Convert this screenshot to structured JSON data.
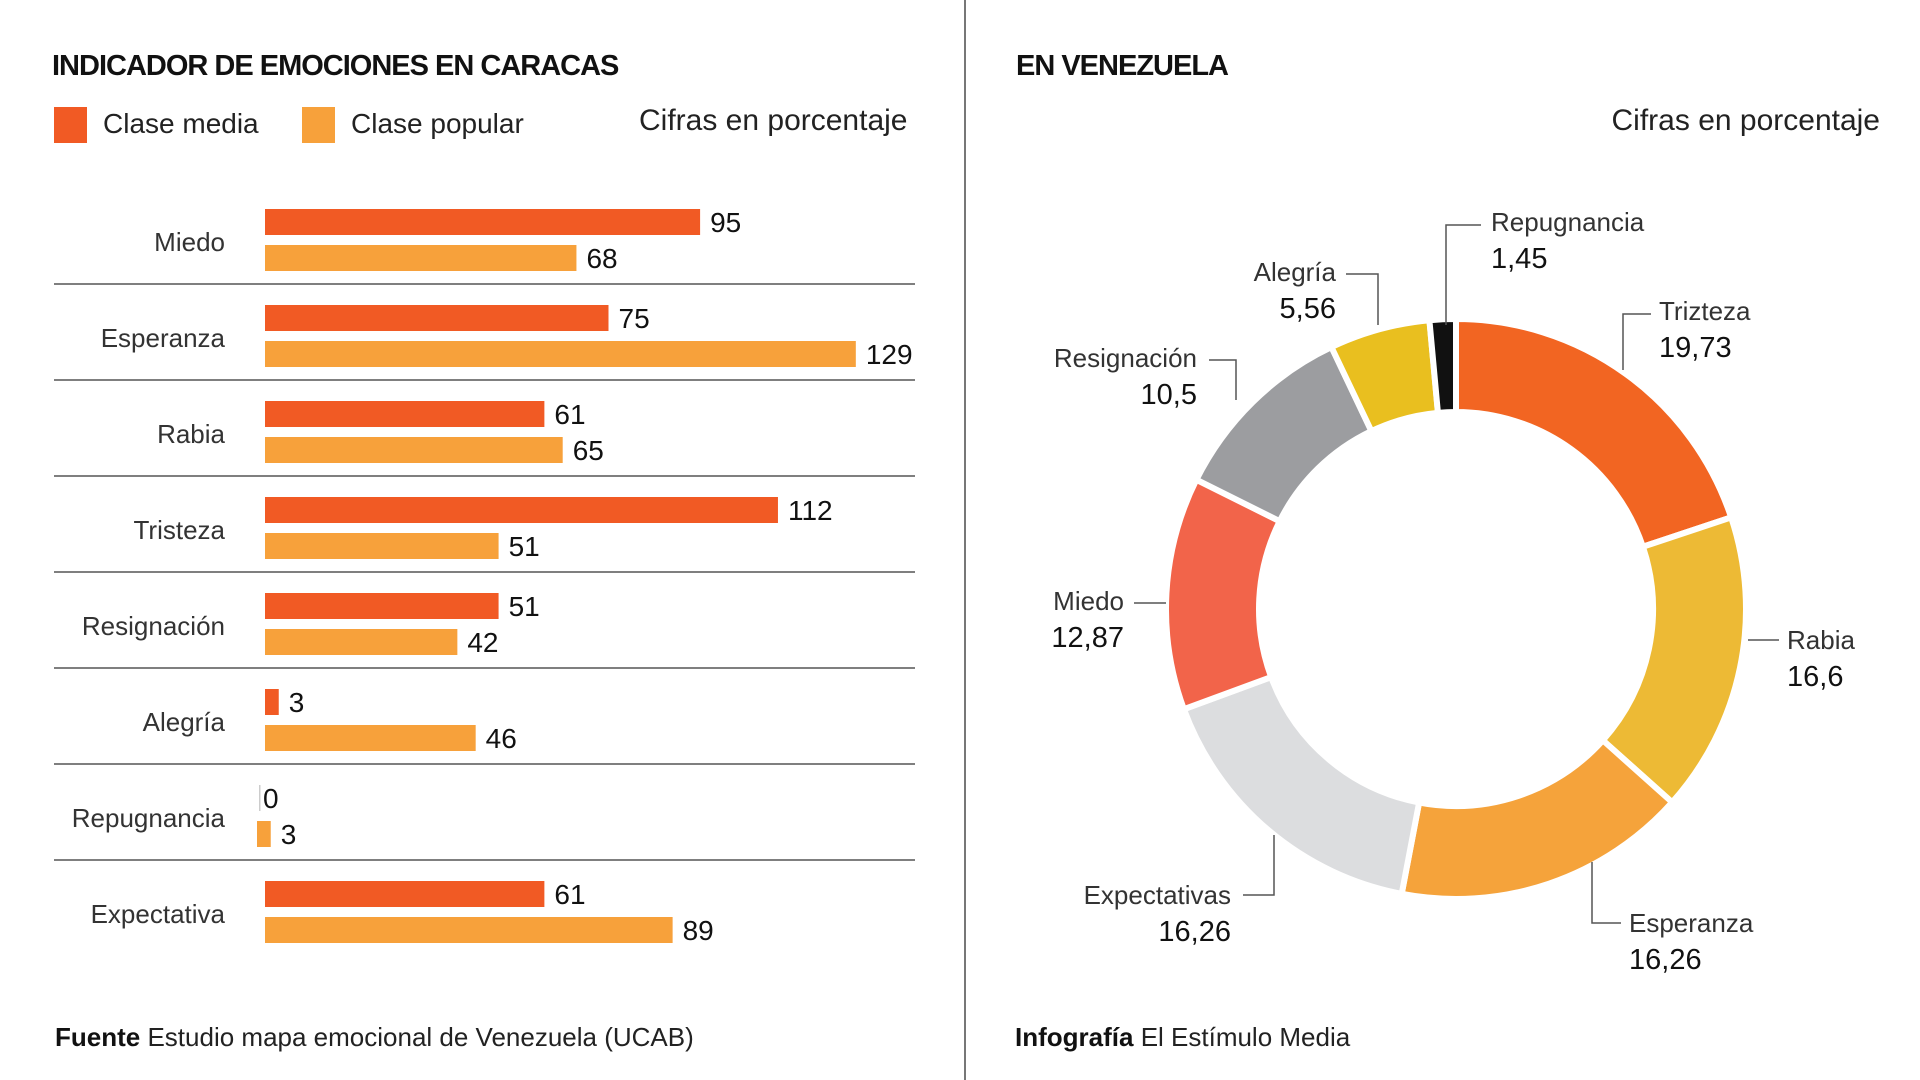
{
  "left": {
    "title": "INDICADOR DE EMOCIONES EN CARACAS",
    "legend": [
      {
        "label": "Clase media",
        "color": "#F15A24"
      },
      {
        "label": "Clase popular",
        "color": "#F7A13B"
      }
    ],
    "note": "Cifras en porcentaje",
    "footer_bold": "Fuente",
    "footer_text": "Estudio mapa emocional de Venezuela (UCAB)"
  },
  "right": {
    "title": "EN VENEZUELA",
    "note": "Cifras en porcentaje",
    "footer_bold": "Infografía",
    "footer_text": "El Estímulo Media"
  },
  "chart_data": [
    {
      "type": "bar",
      "orientation": "horizontal",
      "title": "INDICADOR DE EMOCIONES EN CARACAS",
      "categories": [
        "Miedo",
        "Esperanza",
        "Rabia",
        "Tristeza",
        "Resignación",
        "Alegría",
        "Repugnancia",
        "Expectativa"
      ],
      "series": [
        {
          "name": "Clase media",
          "color": "#F15A24",
          "values": [
            95,
            75,
            61,
            112,
            51,
            3,
            0,
            61
          ]
        },
        {
          "name": "Clase popular",
          "color": "#F7A13B",
          "values": [
            68,
            129,
            65,
            51,
            42,
            46,
            3,
            89
          ]
        }
      ],
      "data_labels": true,
      "grid": false,
      "legend_placement": "top-left"
    },
    {
      "type": "pie",
      "variant": "donut",
      "title": "EN VENEZUELA",
      "slices": [
        {
          "label": "Trizteza",
          "value": 19.73,
          "display": "19,73",
          "color": "#F26522"
        },
        {
          "label": "Rabia",
          "value": 16.6,
          "display": "16,6",
          "color": "#EDBA35"
        },
        {
          "label": "Esperanza",
          "value": 16.26,
          "display": "16,26",
          "color": "#F5A33B"
        },
        {
          "label": "Expectativas",
          "value": 16.26,
          "display": "16,26",
          "color": "#DCDDDF"
        },
        {
          "label": "Miedo",
          "value": 12.87,
          "display": "12,87",
          "color": "#F2644A"
        },
        {
          "label": "Resignación",
          "value": 10.5,
          "display": "10,5",
          "color": "#9C9DA0"
        },
        {
          "label": "Alegría",
          "value": 5.56,
          "display": "5,56",
          "color": "#E9BF1F"
        },
        {
          "label": "Repugnancia",
          "value": 1.45,
          "display": "1,45",
          "color": "#111111"
        }
      ]
    }
  ]
}
